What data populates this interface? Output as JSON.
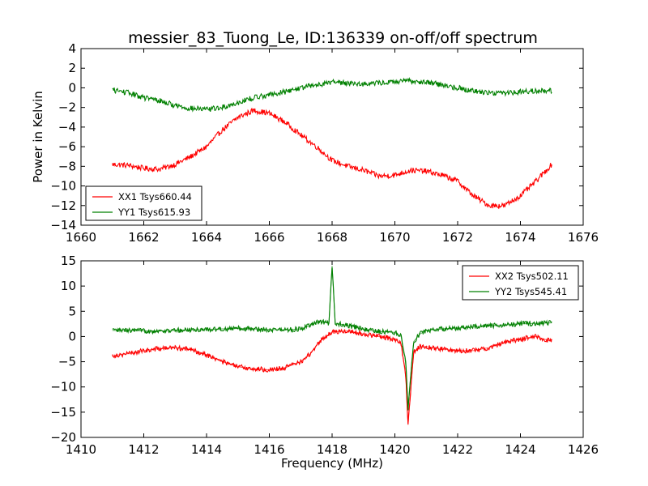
{
  "figure": {
    "title": "messier_83_Tuong_Le, ID:136339 on-off/off spectrum",
    "ylabel": "Power in Kelvin",
    "xlabel": "Frequency (MHz)"
  },
  "colors": {
    "xx": "#ff0000",
    "yy": "#008000"
  },
  "chart_data": [
    {
      "type": "line",
      "xlim": [
        1660,
        1676
      ],
      "ylim": [
        -14,
        4
      ],
      "xticks": [
        1660,
        1662,
        1664,
        1666,
        1668,
        1670,
        1672,
        1674,
        1676
      ],
      "yticks": [
        -14,
        -12,
        -10,
        -8,
        -6,
        -4,
        -2,
        0,
        2,
        4
      ],
      "legend_position": "lower-left",
      "grid": false,
      "series": [
        {
          "name": "XX1 Tsys660.44",
          "color": "#ff0000",
          "x": [
            1661.0,
            1661.5,
            1662.0,
            1662.5,
            1663.0,
            1663.5,
            1664.0,
            1664.5,
            1665.0,
            1665.5,
            1666.0,
            1666.5,
            1667.0,
            1667.5,
            1668.0,
            1668.5,
            1669.0,
            1669.5,
            1670.0,
            1670.5,
            1671.0,
            1671.5,
            1672.0,
            1672.5,
            1673.0,
            1673.5,
            1674.0,
            1674.5,
            1675.0
          ],
          "y": [
            -7.8,
            -7.9,
            -8.2,
            -8.3,
            -7.8,
            -7.0,
            -6.0,
            -4.3,
            -3.0,
            -2.3,
            -2.6,
            -3.5,
            -4.8,
            -6.0,
            -7.4,
            -8.0,
            -8.4,
            -9.0,
            -8.9,
            -8.4,
            -8.5,
            -8.9,
            -9.5,
            -11.0,
            -12.0,
            -12.0,
            -11.0,
            -9.5,
            -7.8
          ]
        },
        {
          "name": "YY1 Tsys615.93",
          "color": "#008000",
          "x": [
            1661.0,
            1661.5,
            1662.0,
            1662.5,
            1663.0,
            1663.5,
            1664.0,
            1664.5,
            1665.0,
            1665.5,
            1666.0,
            1666.5,
            1667.0,
            1667.5,
            1668.0,
            1668.5,
            1669.0,
            1669.5,
            1670.0,
            1670.5,
            1671.0,
            1671.5,
            1672.0,
            1672.5,
            1673.0,
            1673.5,
            1674.0,
            1674.5,
            1675.0
          ],
          "y": [
            -0.2,
            -0.5,
            -1.0,
            -1.3,
            -1.8,
            -2.1,
            -2.2,
            -2.0,
            -1.5,
            -1.0,
            -0.7,
            -0.4,
            0.0,
            0.3,
            0.6,
            0.5,
            0.4,
            0.5,
            0.6,
            0.7,
            0.6,
            0.3,
            0.0,
            -0.3,
            -0.5,
            -0.5,
            -0.4,
            -0.3,
            -0.3
          ]
        }
      ]
    },
    {
      "type": "line",
      "xlim": [
        1410,
        1426
      ],
      "ylim": [
        -20,
        15
      ],
      "xticks": [
        1410,
        1412,
        1414,
        1416,
        1418,
        1420,
        1422,
        1424,
        1426
      ],
      "yticks": [
        -20,
        -15,
        -10,
        -5,
        0,
        5,
        10,
        15
      ],
      "legend_position": "upper-right",
      "grid": false,
      "series": [
        {
          "name": "XX2 Tsys502.11",
          "color": "#ff0000",
          "x": [
            1411.0,
            1411.5,
            1412.0,
            1412.5,
            1413.0,
            1413.5,
            1414.0,
            1414.5,
            1415.0,
            1415.5,
            1416.0,
            1416.5,
            1417.0,
            1417.3,
            1417.6,
            1418.0,
            1418.5,
            1419.0,
            1419.5,
            1420.0,
            1420.2,
            1420.35,
            1420.42,
            1420.5,
            1420.6,
            1420.8,
            1421.0,
            1421.5,
            1422.0,
            1422.5,
            1423.0,
            1423.5,
            1424.0,
            1424.5,
            1425.0
          ],
          "y": [
            -3.8,
            -3.4,
            -2.8,
            -2.4,
            -2.2,
            -2.6,
            -3.6,
            -5.0,
            -6.0,
            -6.4,
            -6.6,
            -6.2,
            -5.0,
            -3.5,
            -1.0,
            0.9,
            1.1,
            0.5,
            0.0,
            -0.5,
            -1.5,
            -8.0,
            -17.5,
            -11.0,
            -3.0,
            -2.0,
            -2.0,
            -2.5,
            -2.8,
            -2.8,
            -2.2,
            -1.2,
            -0.5,
            0.0,
            -1.0
          ]
        },
        {
          "name": "YY2 Tsys545.41",
          "color": "#008000",
          "x": [
            1411.0,
            1411.5,
            1412.0,
            1412.5,
            1413.0,
            1413.5,
            1414.0,
            1414.5,
            1415.0,
            1415.5,
            1416.0,
            1416.5,
            1417.0,
            1417.3,
            1417.6,
            1417.9,
            1418.0,
            1418.1,
            1418.5,
            1419.0,
            1419.5,
            1420.0,
            1420.2,
            1420.35,
            1420.42,
            1420.5,
            1420.6,
            1420.8,
            1421.0,
            1421.5,
            1422.0,
            1422.5,
            1423.0,
            1423.5,
            1424.0,
            1424.5,
            1425.0
          ],
          "y": [
            1.2,
            1.2,
            1.1,
            1.1,
            1.2,
            1.3,
            1.4,
            1.5,
            1.6,
            1.5,
            1.4,
            1.3,
            1.5,
            2.2,
            3.0,
            2.6,
            14.0,
            2.6,
            2.2,
            1.4,
            1.0,
            0.8,
            0.0,
            -5.0,
            -14.5,
            -8.0,
            -1.0,
            0.5,
            1.2,
            1.5,
            1.7,
            1.9,
            2.1,
            2.3,
            2.5,
            2.6,
            2.7
          ]
        }
      ]
    }
  ]
}
